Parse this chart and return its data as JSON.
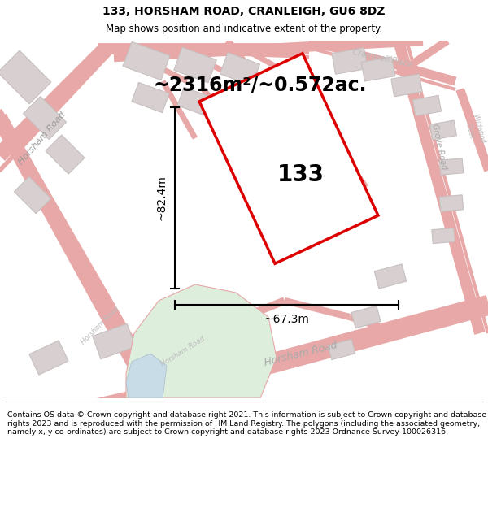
{
  "title_line1": "133, HORSHAM ROAD, CRANLEIGH, GU6 8DZ",
  "title_line2": "Map shows position and indicative extent of the property.",
  "area_text": "~2316m²/~0.572ac.",
  "dim_vertical": "~82.4m",
  "dim_horizontal": "~67.3m",
  "label": "133",
  "footer": "Contains OS data © Crown copyright and database right 2021. This information is subject to Crown copyright and database rights 2023 and is reproduced with the permission of HM Land Registry. The polygons (including the associated geometry, namely x, y co-ordinates) are subject to Crown copyright and database rights 2023 Ordnance Survey 100026316.",
  "map_bg": "#f5eeee",
  "road_color": "#e8a8a8",
  "road_fill": "#f2dede",
  "polygon_color": "#dd0000",
  "building_color": "#d8d0d0",
  "building_edge": "#c8c0c0",
  "green_color": "#ddeedd",
  "water_color": "#c8dce8",
  "fig_width": 6.0,
  "fig_height": 6.25
}
